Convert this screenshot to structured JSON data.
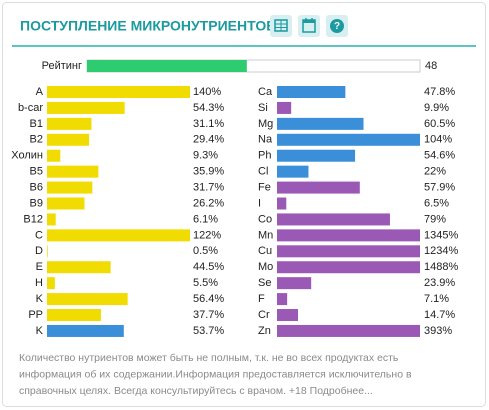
{
  "header": {
    "title": "ПОСТУПЛЕНИЕ МИКРОНУТРИЕНТОВ"
  },
  "rating": {
    "label": "Рейтинг",
    "value": 48,
    "color": "#2ecc71"
  },
  "left": {
    "items": [
      {
        "name": "A",
        "value": 140,
        "value_label": "140%",
        "color": "#f0dc00"
      },
      {
        "name": "b-car",
        "value": 54.3,
        "value_label": "54.3%",
        "color": "#f0dc00"
      },
      {
        "name": "B1",
        "value": 31.1,
        "value_label": "31.1%",
        "color": "#f0dc00"
      },
      {
        "name": "B2",
        "value": 29.4,
        "value_label": "29.4%",
        "color": "#f0dc00"
      },
      {
        "name": "Холин",
        "value": 9.3,
        "value_label": "9.3%",
        "color": "#f0dc00"
      },
      {
        "name": "B5",
        "value": 35.9,
        "value_label": "35.9%",
        "color": "#f0dc00"
      },
      {
        "name": "B6",
        "value": 31.7,
        "value_label": "31.7%",
        "color": "#f0dc00"
      },
      {
        "name": "B9",
        "value": 26.2,
        "value_label": "26.2%",
        "color": "#f0dc00"
      },
      {
        "name": "B12",
        "value": 6.1,
        "value_label": "6.1%",
        "color": "#f0dc00"
      },
      {
        "name": "C",
        "value": 122,
        "value_label": "122%",
        "color": "#f0dc00"
      },
      {
        "name": "D",
        "value": 0.5,
        "value_label": "0.5%",
        "color": "#f0dc00"
      },
      {
        "name": "E",
        "value": 44.5,
        "value_label": "44.5%",
        "color": "#f0dc00"
      },
      {
        "name": "H",
        "value": 5.5,
        "value_label": "5.5%",
        "color": "#f0dc00"
      },
      {
        "name": "K",
        "value": 56.4,
        "value_label": "56.4%",
        "color": "#f0dc00"
      },
      {
        "name": "PP",
        "value": 37.7,
        "value_label": "37.7%",
        "color": "#f0dc00"
      },
      {
        "name": "K",
        "value": 53.7,
        "value_label": "53.7%",
        "color": "#3a8fd8"
      }
    ]
  },
  "right": {
    "items": [
      {
        "name": "Ca",
        "value": 47.8,
        "value_label": "47.8%",
        "color": "#3a8fd8"
      },
      {
        "name": "Si",
        "value": 9.9,
        "value_label": "9.9%",
        "color": "#9b59b6"
      },
      {
        "name": "Mg",
        "value": 60.5,
        "value_label": "60.5%",
        "color": "#3a8fd8"
      },
      {
        "name": "Na",
        "value": 104,
        "value_label": "104%",
        "color": "#3a8fd8"
      },
      {
        "name": "Ph",
        "value": 54.6,
        "value_label": "54.6%",
        "color": "#3a8fd8"
      },
      {
        "name": "Cl",
        "value": 22,
        "value_label": "22%",
        "color": "#3a8fd8"
      },
      {
        "name": "Fe",
        "value": 57.9,
        "value_label": "57.9%",
        "color": "#9b59b6"
      },
      {
        "name": "I",
        "value": 6.5,
        "value_label": "6.5%",
        "color": "#9b59b6"
      },
      {
        "name": "Co",
        "value": 79,
        "value_label": "79%",
        "color": "#9b59b6"
      },
      {
        "name": "Mn",
        "value": 1345,
        "value_label": "1345%",
        "color": "#9b59b6"
      },
      {
        "name": "Cu",
        "value": 1234,
        "value_label": "1234%",
        "color": "#9b59b6"
      },
      {
        "name": "Mo",
        "value": 1488,
        "value_label": "1488%",
        "color": "#9b59b6"
      },
      {
        "name": "Se",
        "value": 23.9,
        "value_label": "23.9%",
        "color": "#9b59b6"
      },
      {
        "name": "F",
        "value": 7.1,
        "value_label": "7.1%",
        "color": "#9b59b6"
      },
      {
        "name": "Cr",
        "value": 14.7,
        "value_label": "14.7%",
        "color": "#9b59b6"
      },
      {
        "name": "Zn",
        "value": 393,
        "value_label": "393%",
        "color": "#9b59b6"
      }
    ]
  },
  "footer": {
    "lines": [
      "Количество нутриентов может быть не полным, т.к. не во всех продуктах есть",
      "информация об их содержании.Информация предоставляется исключительно в",
      "справочных целях. Всегда консультируйтесь с врачом. +18 Подробнее..."
    ]
  }
}
